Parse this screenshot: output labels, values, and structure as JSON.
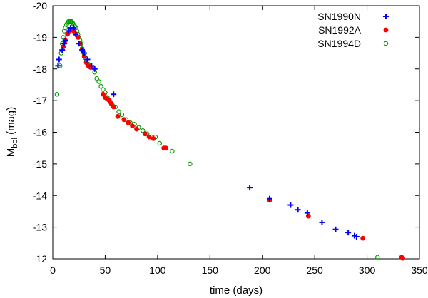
{
  "chart_data": {
    "type": "scatter",
    "title": "",
    "xlabel": "time (days)",
    "ylabel_main": "M",
    "ylabel_sub": "bol",
    "ylabel_unit": " (mag)",
    "xlim": [
      0,
      350
    ],
    "ylim": [
      -12,
      -20
    ],
    "y_inverted": true,
    "xticks": [
      0,
      50,
      100,
      150,
      200,
      250,
      300,
      350
    ],
    "yticks": [
      -12,
      -13,
      -14,
      -15,
      -16,
      -17,
      -18,
      -19,
      -20
    ],
    "xtick_labels": [
      "0",
      "50",
      "100",
      "150",
      "200",
      "250",
      "300",
      "350"
    ],
    "ytick_labels": [
      "-12",
      "-13",
      "-14",
      "-15",
      "-16",
      "-17",
      "-18",
      "-19",
      "-20"
    ],
    "grid": false,
    "legend_position": "top-right",
    "series": [
      {
        "name": "SN1990N",
        "marker": "plus",
        "color": "#0000ff",
        "points": [
          [
            5,
            -18.1
          ],
          [
            6,
            -18.3
          ],
          [
            9,
            -18.6
          ],
          [
            11,
            -18.8
          ],
          [
            12,
            -18.9
          ],
          [
            15,
            -19.2
          ],
          [
            17,
            -19.3
          ],
          [
            20,
            -19.3
          ],
          [
            22,
            -19.1
          ],
          [
            25,
            -18.8
          ],
          [
            28,
            -18.6
          ],
          [
            30,
            -18.5
          ],
          [
            33,
            -18.3
          ],
          [
            37,
            -18.1
          ],
          [
            40,
            -18.0
          ],
          [
            58,
            -17.2
          ],
          [
            188,
            -14.25
          ],
          [
            207,
            -13.9
          ],
          [
            227,
            -13.7
          ],
          [
            234,
            -13.55
          ],
          [
            243,
            -13.45
          ],
          [
            257,
            -13.15
          ],
          [
            270,
            -12.93
          ],
          [
            282,
            -12.83
          ],
          [
            288,
            -12.73
          ],
          [
            290,
            -12.7
          ]
        ]
      },
      {
        "name": "SN1992A",
        "marker": "filled-circle",
        "color": "#ff0000",
        "points": [
          [
            10,
            -18.7
          ],
          [
            12,
            -18.9
          ],
          [
            14,
            -19.1
          ],
          [
            16,
            -19.2
          ],
          [
            18,
            -19.25
          ],
          [
            20,
            -19.2
          ],
          [
            22,
            -19.1
          ],
          [
            24,
            -19.0
          ],
          [
            26,
            -18.8
          ],
          [
            28,
            -18.6
          ],
          [
            30,
            -18.4
          ],
          [
            32,
            -18.2
          ],
          [
            34,
            -18.1
          ],
          [
            36,
            -18.05
          ],
          [
            48,
            -17.2
          ],
          [
            50,
            -17.1
          ],
          [
            52,
            -17.05
          ],
          [
            54,
            -17.0
          ],
          [
            56,
            -16.9
          ],
          [
            58,
            -16.8
          ],
          [
            62,
            -16.5
          ],
          [
            68,
            -16.4
          ],
          [
            72,
            -16.3
          ],
          [
            76,
            -16.2
          ],
          [
            80,
            -16.1
          ],
          [
            88,
            -15.95
          ],
          [
            92,
            -15.85
          ],
          [
            96,
            -15.8
          ],
          [
            106,
            -15.5
          ],
          [
            108,
            -15.5
          ],
          [
            207,
            -13.85
          ],
          [
            244,
            -13.35
          ],
          [
            296,
            -12.65
          ],
          [
            333,
            -12.05
          ],
          [
            334,
            -12.02
          ]
        ]
      },
      {
        "name": "SN1994D",
        "marker": "open-circle",
        "color": "#009900",
        "points": [
          [
            4,
            -17.2
          ],
          [
            7,
            -18.1
          ],
          [
            8,
            -18.5
          ],
          [
            9,
            -18.8
          ],
          [
            10,
            -19.0
          ],
          [
            11,
            -19.2
          ],
          [
            12,
            -19.3
          ],
          [
            13,
            -19.4
          ],
          [
            14,
            -19.45
          ],
          [
            15,
            -19.5
          ],
          [
            16,
            -19.5
          ],
          [
            17,
            -19.5
          ],
          [
            18,
            -19.5
          ],
          [
            19,
            -19.45
          ],
          [
            20,
            -19.4
          ],
          [
            21,
            -19.35
          ],
          [
            22,
            -19.3
          ],
          [
            23,
            -19.2
          ],
          [
            24,
            -19.1
          ],
          [
            25,
            -19.0
          ],
          [
            26,
            -18.9
          ],
          [
            27,
            -18.8
          ],
          [
            28,
            -18.65
          ],
          [
            29,
            -18.55
          ],
          [
            30,
            -18.45
          ],
          [
            31,
            -18.35
          ],
          [
            32,
            -18.25
          ],
          [
            34,
            -18.15
          ],
          [
            37,
            -18.05
          ],
          [
            40,
            -17.9
          ],
          [
            42,
            -17.7
          ],
          [
            44,
            -17.6
          ],
          [
            46,
            -17.45
          ],
          [
            48,
            -17.35
          ],
          [
            50,
            -17.25
          ],
          [
            52,
            -17.1
          ],
          [
            55,
            -16.95
          ],
          [
            57,
            -16.85
          ],
          [
            60,
            -16.8
          ],
          [
            63,
            -16.65
          ],
          [
            66,
            -16.55
          ],
          [
            70,
            -16.4
          ],
          [
            74,
            -16.3
          ],
          [
            78,
            -16.25
          ],
          [
            82,
            -16.15
          ],
          [
            86,
            -16.05
          ],
          [
            90,
            -15.95
          ],
          [
            94,
            -15.85
          ],
          [
            98,
            -15.85
          ],
          [
            102,
            -15.65
          ],
          [
            114,
            -15.4
          ],
          [
            131,
            -15.0
          ],
          [
            310,
            -12.05
          ]
        ]
      }
    ]
  }
}
